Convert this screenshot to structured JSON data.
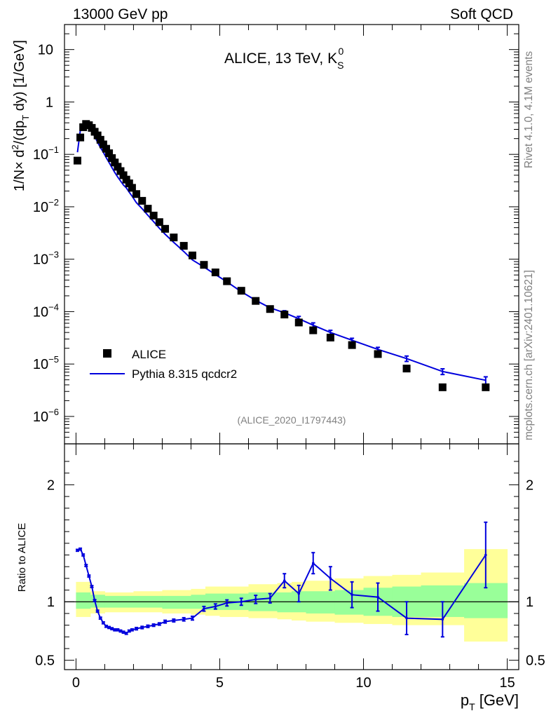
{
  "header": {
    "left": "13000 GeV pp",
    "right": "Soft QCD"
  },
  "side": {
    "rivet": "Rivet 4.1.0,  4.1M events",
    "source": "mcplots.cern.ch [arXiv:2401.10621]"
  },
  "colors": {
    "mc": "#0000dd",
    "data": "#000000",
    "band_inner": "#99ff99",
    "band_outer": "#ffff99"
  },
  "chart_data": [
    {
      "type": "scatter",
      "panel": "main",
      "title": "ALICE, 13 TeV, K",
      "title_sub": "S",
      "title_sup": "0",
      "ylabel": "1/N × d²/(dp_T dy) [1/GeV]",
      "ylabel_parts": {
        "a": "1/N",
        "b": "×",
        "c": " d",
        "d": "2",
        "e": "/(dp",
        "f": "T",
        "g": " dy) [1/GeV]"
      },
      "yscale": "log",
      "ylim": [
        3e-07,
        30
      ],
      "xlim": [
        -0.4,
        15.4
      ],
      "yticks": [
        {
          "v": 1e-06,
          "base": "10",
          "exp": "−6"
        },
        {
          "v": 1e-05,
          "base": "10",
          "exp": "−5"
        },
        {
          "v": 0.0001,
          "base": "10",
          "exp": "−4"
        },
        {
          "v": 0.001,
          "base": "10",
          "exp": "−3"
        },
        {
          "v": 0.01,
          "base": "10",
          "exp": "−2"
        },
        {
          "v": 0.1,
          "base": "10",
          "exp": "−1"
        },
        {
          "v": 1,
          "base": "1",
          "exp": ""
        },
        {
          "v": 10,
          "base": "10",
          "exp": ""
        }
      ],
      "annotation": "(ALICE_2020_I1797443)",
      "legend": [
        {
          "name": "ALICE",
          "marker": "square"
        },
        {
          "name": "Pythia 8.315 qcdcr2",
          "marker": "line"
        }
      ],
      "legend_position": "bottom-left",
      "series": [
        {
          "name": "ALICE",
          "x": [
            0.05,
            0.15,
            0.25,
            0.35,
            0.45,
            0.55,
            0.65,
            0.75,
            0.85,
            0.95,
            1.05,
            1.15,
            1.25,
            1.35,
            1.45,
            1.55,
            1.65,
            1.75,
            1.85,
            1.95,
            2.1,
            2.3,
            2.5,
            2.7,
            2.9,
            3.1,
            3.4,
            3.75,
            4.05,
            4.45,
            4.85,
            5.25,
            5.75,
            6.25,
            6.75,
            7.25,
            7.75,
            8.25,
            8.85,
            9.6,
            10.5,
            11.5,
            12.75,
            14.25
          ],
          "y": [
            0.076,
            0.21,
            0.33,
            0.38,
            0.36,
            0.32,
            0.27,
            0.23,
            0.19,
            0.155,
            0.128,
            0.105,
            0.085,
            0.07,
            0.058,
            0.048,
            0.04,
            0.033,
            0.028,
            0.023,
            0.0175,
            0.013,
            0.0092,
            0.0068,
            0.0051,
            0.0038,
            0.0026,
            0.0018,
            0.00118,
            0.00078,
            0.00056,
            0.00038,
            0.00025,
            0.00016,
            0.000112,
            8.8e-05,
            6.2e-05,
            4.4e-05,
            3.2e-05,
            2.3e-05,
            1.55e-05,
            8.2e-06,
            3.6e-06,
            3.6e-06
          ]
        },
        {
          "name": "Pythia 8.315 qcdcr2",
          "x": [
            0.05,
            0.15,
            0.25,
            0.35,
            0.45,
            0.55,
            0.65,
            0.75,
            0.85,
            0.95,
            1.05,
            1.15,
            1.25,
            1.35,
            1.45,
            1.55,
            1.65,
            1.75,
            1.85,
            1.95,
            2.1,
            2.3,
            2.5,
            2.7,
            2.9,
            3.1,
            3.4,
            3.75,
            4.05,
            4.45,
            4.85,
            5.25,
            5.75,
            6.25,
            6.75,
            7.25,
            7.75,
            8.25,
            8.85,
            9.6,
            10.5,
            11.5,
            12.75,
            14.25
          ],
          "y": [
            0.11,
            0.29,
            0.36,
            0.39,
            0.34,
            0.28,
            0.22,
            0.17,
            0.135,
            0.11,
            0.087,
            0.07,
            0.056,
            0.045,
            0.037,
            0.031,
            0.026,
            0.023,
            0.019,
            0.016,
            0.012,
            0.0092,
            0.0069,
            0.0052,
            0.0039,
            0.003,
            0.0021,
            0.0014,
            0.00097,
            0.00071,
            0.00051,
            0.00037,
            0.00024,
            0.000165,
            0.000118,
            9.5e-05,
            7.3e-05,
            5.5e-05,
            4e-05,
            2.85e-05,
            1.9e-05,
            1.27e-05,
            7.2e-06,
            4.9e-06
          ],
          "yerr": [
            0,
            0,
            0,
            0,
            0,
            0,
            0,
            0,
            0,
            0,
            0,
            0,
            0,
            0,
            0,
            0,
            0,
            0,
            0,
            0,
            0,
            0,
            0,
            0,
            0,
            0,
            0,
            0,
            0,
            0,
            0,
            0,
            0,
            0,
            0,
            9e-06,
            8e-06,
            6e-06,
            4e-06,
            2.5e-06,
            1.8e-06,
            1.5e-06,
            9e-07,
            8e-07
          ]
        }
      ]
    },
    {
      "type": "line",
      "panel": "ratio",
      "ylabel": "Ratio to ALICE",
      "xlabel": "p_T [GeV]",
      "xlabel_parts": {
        "a": "p",
        "b": "T",
        "c": " [GeV]"
      },
      "ylim": [
        0.42,
        2.35
      ],
      "xlim": [
        -0.4,
        15.4
      ],
      "yticks": [
        {
          "v": 0.5,
          "label": "0.5"
        },
        {
          "v": 1,
          "label": "1"
        },
        {
          "v": 2,
          "label": "2"
        }
      ],
      "xticks": [
        {
          "v": 0,
          "label": "0"
        },
        {
          "v": 5,
          "label": "5"
        },
        {
          "v": 10,
          "label": "10"
        },
        {
          "v": 15,
          "label": "15"
        }
      ],
      "bands": {
        "edges": [
          0,
          0.5,
          1.0,
          2.0,
          3.0,
          4.0,
          4.5,
          5.0,
          6.0,
          7.0,
          7.5,
          8.0,
          9.0,
          10.0,
          11.0,
          12.0,
          13.5,
          15.0
        ],
        "inner": [
          [
            0.94,
            1.08
          ],
          [
            0.95,
            1.06
          ],
          [
            0.95,
            1.05
          ],
          [
            0.95,
            1.05
          ],
          [
            0.94,
            1.05
          ],
          [
            0.94,
            1.06
          ],
          [
            0.93,
            1.07
          ],
          [
            0.93,
            1.07
          ],
          [
            0.92,
            1.08
          ],
          [
            0.91,
            1.08
          ],
          [
            0.91,
            1.09
          ],
          [
            0.9,
            1.09
          ],
          [
            0.89,
            1.1
          ],
          [
            0.88,
            1.12
          ],
          [
            0.87,
            1.13
          ],
          [
            0.87,
            1.14
          ],
          [
            0.86,
            1.16
          ]
        ],
        "outer": [
          [
            0.87,
            1.17
          ],
          [
            0.9,
            1.09
          ],
          [
            0.91,
            1.08
          ],
          [
            0.91,
            1.09
          ],
          [
            0.9,
            1.1
          ],
          [
            0.89,
            1.11
          ],
          [
            0.88,
            1.13
          ],
          [
            0.87,
            1.13
          ],
          [
            0.86,
            1.15
          ],
          [
            0.85,
            1.16
          ],
          [
            0.84,
            1.17
          ],
          [
            0.83,
            1.18
          ],
          [
            0.82,
            1.2
          ],
          [
            0.81,
            1.22
          ],
          [
            0.8,
            1.23
          ],
          [
            0.8,
            1.25
          ],
          [
            0.66,
            1.45
          ]
        ]
      },
      "series": [
        {
          "name": "Pythia 8.315 qcdcr2",
          "x": [
            0.05,
            0.15,
            0.25,
            0.35,
            0.45,
            0.55,
            0.65,
            0.75,
            0.85,
            0.95,
            1.05,
            1.15,
            1.25,
            1.35,
            1.45,
            1.55,
            1.65,
            1.75,
            1.85,
            1.95,
            2.1,
            2.3,
            2.5,
            2.7,
            2.9,
            3.1,
            3.4,
            3.75,
            4.05,
            4.45,
            4.85,
            5.25,
            5.75,
            6.25,
            6.75,
            7.25,
            7.75,
            8.25,
            8.85,
            9.6,
            10.5,
            11.5,
            12.75,
            14.25
          ],
          "y": [
            1.44,
            1.45,
            1.4,
            1.31,
            1.22,
            1.13,
            1.01,
            0.92,
            0.86,
            0.82,
            0.79,
            0.78,
            0.77,
            0.76,
            0.76,
            0.75,
            0.74,
            0.73,
            0.75,
            0.76,
            0.77,
            0.78,
            0.79,
            0.8,
            0.81,
            0.83,
            0.84,
            0.85,
            0.86,
            0.94,
            0.96,
            0.99,
            1.0,
            1.02,
            1.03,
            1.18,
            1.07,
            1.33,
            1.2,
            1.06,
            1.04,
            0.86,
            0.85,
            1.4
          ],
          "yerr": [
            0.008,
            0.008,
            0.008,
            0.008,
            0.008,
            0.008,
            0.008,
            0.008,
            0.008,
            0.008,
            0.008,
            0.008,
            0.008,
            0.008,
            0.008,
            0.008,
            0.008,
            0.008,
            0.008,
            0.008,
            0.01,
            0.01,
            0.01,
            0.01,
            0.01,
            0.012,
            0.012,
            0.014,
            0.016,
            0.02,
            0.022,
            0.026,
            0.03,
            0.035,
            0.04,
            0.06,
            0.07,
            0.09,
            0.1,
            0.11,
            0.12,
            0.14,
            0.15,
            0.28
          ]
        }
      ]
    }
  ]
}
